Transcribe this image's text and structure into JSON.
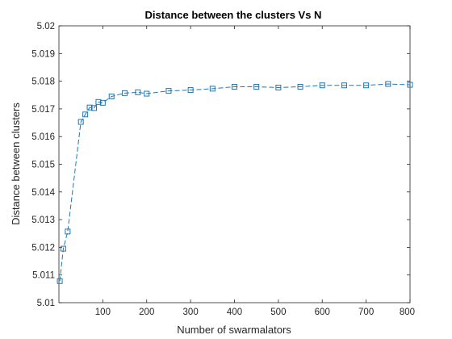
{
  "chart_data": {
    "type": "line",
    "title": "Distance between the clusters Vs N",
    "xlabel": "Number of swarmalators",
    "ylabel": "Distance between clusters",
    "xlim": [
      0,
      800
    ],
    "ylim": [
      5.01,
      5.02
    ],
    "xticks": [
      100,
      200,
      300,
      400,
      500,
      600,
      700,
      800
    ],
    "xtick_labels": [
      "100",
      "200",
      "300",
      "400",
      "500",
      "600",
      "700",
      "800"
    ],
    "yticks": [
      5.01,
      5.011,
      5.012,
      5.013,
      5.014,
      5.015,
      5.016,
      5.017,
      5.018,
      5.019,
      5.02
    ],
    "ytick_labels": [
      "5.01",
      "5.011",
      "5.012",
      "5.013",
      "5.014",
      "5.015",
      "5.016",
      "5.017",
      "5.018",
      "5.019",
      "5.02"
    ],
    "grid": false,
    "line_style": "dashed",
    "marker": "square",
    "color": "#1f77b4",
    "series": [
      {
        "x": [
          2,
          10,
          20,
          50,
          60,
          70,
          80,
          90,
          100,
          120,
          150,
          180,
          200,
          250,
          300,
          350,
          400,
          450,
          500,
          550,
          600,
          650,
          700,
          750,
          800
        ],
        "values": [
          5.01078,
          5.01195,
          5.01257,
          5.01653,
          5.0168,
          5.01705,
          5.01703,
          5.01725,
          5.01722,
          5.01745,
          5.01757,
          5.0176,
          5.01755,
          5.01765,
          5.01768,
          5.01773,
          5.0178,
          5.0178,
          5.01777,
          5.0178,
          5.01785,
          5.01785,
          5.01785,
          5.0179,
          5.01787
        ]
      }
    ]
  }
}
